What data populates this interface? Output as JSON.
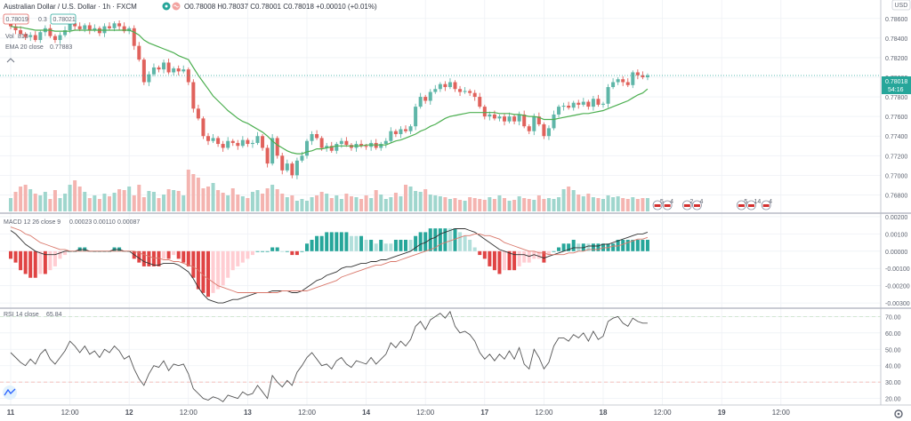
{
  "header": {
    "symbol": "Australian Dollar / U.S. Dollar · 1h · FXCM",
    "ohlc": "O0.78008 H0.78037 C0.78001 C0.78018 +0.00010 (+0.01%)",
    "sell_price": "0.78019",
    "spread": "0.3",
    "buy_price": "0.78021",
    "volume_label": "Vol",
    "volume_value": "813",
    "ema_label": "EMA 20 close",
    "ema_value": "0.77883",
    "currency": "USD"
  },
  "price_tag": {
    "value": "0.78018",
    "countdown": "54:16"
  },
  "macd_legend": {
    "label": "MACD 12 26 close 9",
    "v1": "0.00023",
    "v2": "0.00110",
    "v3": "0.00087"
  },
  "rsi_legend": {
    "label": "RSI 14 close",
    "value": "65.84"
  },
  "colors": {
    "up": "#5fb6a8",
    "down": "#e0625c",
    "ema": "#4caf50",
    "macd": "#333333",
    "signal": "#d9776a",
    "grid": "#eef1f5"
  },
  "chart_data": [
    {
      "type": "candlestick",
      "title": "Australian Dollar / U.S. Dollar · 1h · FXCM",
      "y_ticks": [
        "0.78600",
        "0.78400",
        "0.78200",
        "0.78000",
        "0.77800",
        "0.77600",
        "0.77400",
        "0.77200",
        "0.77000",
        "0.76800"
      ],
      "y_tick_values": [
        0.786,
        0.784,
        0.782,
        0.78,
        0.778,
        0.776,
        0.774,
        0.772,
        0.77,
        0.768
      ],
      "ylim": [
        0.7665,
        0.7877
      ],
      "x_tick_labels": [
        "11",
        "12:00",
        "12",
        "12:00",
        "13",
        "12:00",
        "14",
        "12:00",
        "17",
        "12:00",
        "18",
        "12:00",
        "19",
        "12:00"
      ],
      "x_tick_index": [
        0,
        12,
        24,
        36,
        48,
        60,
        72,
        84,
        96,
        108,
        120,
        132,
        144,
        156
      ],
      "close": [
        0.7852,
        0.7848,
        0.7844,
        0.7841,
        0.7843,
        0.7838,
        0.7846,
        0.785,
        0.7842,
        0.7838,
        0.7843,
        0.7848,
        0.7855,
        0.7852,
        0.7849,
        0.7853,
        0.7848,
        0.785,
        0.7845,
        0.7852,
        0.785,
        0.7855,
        0.7852,
        0.7847,
        0.785,
        0.7832,
        0.7818,
        0.7795,
        0.7803,
        0.781,
        0.7808,
        0.7815,
        0.7805,
        0.7809,
        0.7806,
        0.7808,
        0.7795,
        0.7768,
        0.7758,
        0.774,
        0.7735,
        0.7738,
        0.7732,
        0.7728,
        0.7735,
        0.7733,
        0.773,
        0.7736,
        0.7732,
        0.7733,
        0.774,
        0.7728,
        0.7712,
        0.7738,
        0.772,
        0.7705,
        0.7712,
        0.77,
        0.7715,
        0.772,
        0.7735,
        0.7742,
        0.7738,
        0.7728,
        0.773,
        0.7725,
        0.7732,
        0.7735,
        0.7731,
        0.7728,
        0.7732,
        0.773,
        0.7729,
        0.7733,
        0.7728,
        0.7732,
        0.7735,
        0.7745,
        0.7742,
        0.7747,
        0.7745,
        0.775,
        0.777,
        0.778,
        0.7776,
        0.7785,
        0.7788,
        0.7793,
        0.779,
        0.7795,
        0.7788,
        0.7785,
        0.7786,
        0.7784,
        0.778,
        0.777,
        0.776,
        0.7762,
        0.7758,
        0.776,
        0.7755,
        0.776,
        0.7755,
        0.7762,
        0.775,
        0.7745,
        0.776,
        0.7752,
        0.774,
        0.7748,
        0.7762,
        0.777,
        0.7771,
        0.7769,
        0.7774,
        0.7772,
        0.7775,
        0.777,
        0.7778,
        0.7772,
        0.7773,
        0.779,
        0.7795,
        0.7798,
        0.7795,
        0.7792,
        0.7805,
        0.7802,
        0.78,
        0.7802
      ],
      "volume": [
        15,
        22,
        28,
        30,
        25,
        20,
        18,
        22,
        14,
        24,
        15,
        20,
        30,
        35,
        28,
        22,
        15,
        18,
        14,
        20,
        17,
        21,
        25,
        24,
        28,
        18,
        30,
        16,
        23,
        22,
        15,
        19,
        25,
        24,
        23,
        18,
        47,
        42,
        38,
        26,
        28,
        32,
        24,
        21,
        18,
        26,
        19,
        17,
        15,
        22,
        24,
        20,
        26,
        30,
        25,
        20,
        16,
        18,
        12,
        14,
        12,
        16,
        18,
        22,
        20,
        15,
        18,
        14,
        20,
        17,
        16,
        14,
        18,
        15,
        24,
        19,
        14,
        16,
        21,
        17,
        30,
        28,
        23,
        22,
        25,
        19,
        18,
        17,
        16,
        14,
        15,
        13,
        12,
        16,
        15,
        14,
        13,
        16,
        14,
        18,
        15,
        12,
        13,
        17,
        15,
        14,
        13,
        18,
        14,
        15,
        14,
        16,
        25,
        28,
        24,
        19,
        17,
        20,
        16,
        15,
        14,
        18,
        16,
        17,
        15,
        14,
        16,
        14,
        15,
        15
      ],
      "ema": [
        0.7852,
        0.7851,
        0.7851,
        0.785,
        0.7849,
        0.7848,
        0.7848,
        0.7848,
        0.7848,
        0.7847,
        0.7847,
        0.7847,
        0.7847,
        0.7848,
        0.7848,
        0.7848,
        0.7848,
        0.7848,
        0.7848,
        0.7848,
        0.7848,
        0.7848,
        0.7848,
        0.7848,
        0.7848,
        0.7846,
        0.7843,
        0.7838,
        0.7835,
        0.7833,
        0.7831,
        0.7829,
        0.7827,
        0.7825,
        0.7822,
        0.782,
        0.7818,
        0.781,
        0.7802,
        0.7795,
        0.7788,
        0.7781,
        0.7776,
        0.7771,
        0.7766,
        0.7762,
        0.7758,
        0.7755,
        0.7753,
        0.775,
        0.7747,
        0.7744,
        0.774,
        0.7735,
        0.7731,
        0.7728,
        0.7725,
        0.7723,
        0.7722,
        0.7722,
        0.7724,
        0.7725,
        0.7727,
        0.7727,
        0.7728,
        0.7729,
        0.773,
        0.773,
        0.773,
        0.773,
        0.773,
        0.773,
        0.7731,
        0.7731,
        0.7731,
        0.7731,
        0.7731,
        0.7733,
        0.7735,
        0.7736,
        0.7738,
        0.774,
        0.7742,
        0.7745,
        0.7747,
        0.775,
        0.7752,
        0.7755,
        0.7758,
        0.776,
        0.7761,
        0.7762,
        0.7763,
        0.7764,
        0.7764,
        0.7764,
        0.7764,
        0.7764,
        0.7764,
        0.7763,
        0.7763,
        0.7763,
        0.7762,
        0.7762,
        0.7761,
        0.776,
        0.776,
        0.7759,
        0.7757,
        0.7757,
        0.7757,
        0.7758,
        0.7759,
        0.776,
        0.7761,
        0.7762,
        0.7763,
        0.7763,
        0.7764,
        0.7765,
        0.7766,
        0.7768,
        0.777,
        0.7772,
        0.7774,
        0.7776,
        0.7779,
        0.7782,
        0.7784,
        0.7788
      ]
    },
    {
      "type": "histogram+line",
      "title": "MACD 12 26 close 9",
      "y_ticks": [
        "0.00200",
        "0.00100",
        "0.00000",
        "-0.00100",
        "-0.00200",
        "-0.00300"
      ],
      "y_tick_values": [
        0.002,
        0.001,
        0.0,
        -0.001,
        -0.002,
        -0.003
      ],
      "ylim": [
        -0.0032,
        0.0021
      ],
      "macd": [
        0.0012,
        0.001,
        0.0007,
        0.0004,
        0.0002,
        0.0,
        -0.0001,
        -0.0002,
        -0.0002,
        -0.0002,
        -0.0001,
        0.0,
        0.0,
        0.0,
        0.0001,
        0.0001,
        0.0,
        0.0,
        0.0,
        0.0,
        0.0,
        0.0001,
        0.0001,
        0.0,
        0.0,
        -0.0002,
        -0.0004,
        -0.0006,
        -0.0007,
        -0.0008,
        -0.0008,
        -0.0007,
        -0.0007,
        -0.0007,
        -0.0008,
        -0.001,
        -0.0012,
        -0.0016,
        -0.0021,
        -0.0025,
        -0.0028,
        -0.0029,
        -0.003,
        -0.003,
        -0.0029,
        -0.0028,
        -0.0028,
        -0.0027,
        -0.0026,
        -0.0025,
        -0.0024,
        -0.0024,
        -0.0024,
        -0.0023,
        -0.0023,
        -0.0023,
        -0.0023,
        -0.0024,
        -0.0024,
        -0.0023,
        -0.0021,
        -0.0019,
        -0.0017,
        -0.0016,
        -0.0014,
        -0.0013,
        -0.0012,
        -0.001,
        -0.0009,
        -0.0009,
        -0.0008,
        -0.0007,
        -0.0007,
        -0.0006,
        -0.0006,
        -0.0005,
        -0.0005,
        -0.0004,
        -0.0003,
        -0.0002,
        -0.0001,
        0.0,
        0.0002,
        0.0004,
        0.0005,
        0.0007,
        0.0008,
        0.001,
        0.0011,
        0.0012,
        0.0013,
        0.0013,
        0.0013,
        0.0012,
        0.0011,
        0.0009,
        0.0007,
        0.0005,
        0.0003,
        0.0001,
        0.0,
        -0.0001,
        -0.0002,
        -0.0002,
        -0.0002,
        -0.0003,
        -0.0002,
        -0.0003,
        -0.0004,
        -0.0003,
        -0.0002,
        -0.0001,
        0.0,
        0.0001,
        0.0002,
        0.0002,
        0.0002,
        0.0003,
        0.0003,
        0.0003,
        0.0004,
        0.0004,
        0.0005,
        0.0006,
        0.0007,
        0.0008,
        0.0009,
        0.001,
        0.001,
        0.0011
      ],
      "signal": [
        0.0014,
        0.0013,
        0.0012,
        0.001,
        0.0009,
        0.0007,
        0.0005,
        0.0004,
        0.0003,
        0.0002,
        0.0001,
        0.0001,
        0.0,
        0.0,
        0.0,
        0.0,
        0.0,
        0.0,
        0.0,
        0.0,
        0.0,
        0.0,
        0.0,
        0.0,
        0.0,
        0.0,
        -0.0001,
        -0.0002,
        -0.0003,
        -0.0004,
        -0.0004,
        -0.0005,
        -0.0005,
        -0.0006,
        -0.0006,
        -0.0007,
        -0.0008,
        -0.0009,
        -0.0011,
        -0.0014,
        -0.0016,
        -0.0018,
        -0.002,
        -0.0021,
        -0.0022,
        -0.0023,
        -0.0024,
        -0.0024,
        -0.0024,
        -0.0024,
        -0.0024,
        -0.0024,
        -0.0024,
        -0.0024,
        -0.0024,
        -0.0023,
        -0.0023,
        -0.0023,
        -0.0023,
        -0.0023,
        -0.0023,
        -0.0022,
        -0.0021,
        -0.002,
        -0.0019,
        -0.0018,
        -0.0017,
        -0.0015,
        -0.0014,
        -0.0013,
        -0.0012,
        -0.0011,
        -0.001,
        -0.0009,
        -0.0008,
        -0.0008,
        -0.0007,
        -0.0006,
        -0.0006,
        -0.0005,
        -0.0004,
        -0.0003,
        -0.0002,
        -0.0001,
        0.0,
        0.0001,
        0.0002,
        0.0004,
        0.0005,
        0.0006,
        0.0007,
        0.0008,
        0.0009,
        0.0009,
        0.001,
        0.001,
        0.0009,
        0.0009,
        0.0008,
        0.0007,
        0.0005,
        0.0004,
        0.0003,
        0.0002,
        0.0001,
        0.0,
        0.0,
        -0.0001,
        -0.0001,
        -0.0002,
        -0.0002,
        -0.0002,
        -0.0002,
        -0.0001,
        -0.0001,
        0.0,
        0.0,
        0.0001,
        0.0001,
        0.0001,
        0.0002,
        0.0002,
        0.0003,
        0.0003,
        0.0004,
        0.0005,
        0.0006,
        0.0007,
        0.0007,
        0.0008
      ]
    },
    {
      "type": "line",
      "title": "RSI 14 close",
      "y_ticks": [
        "70.00",
        "60.00",
        "50.00",
        "40.00",
        "30.00",
        "20.00"
      ],
      "y_tick_values": [
        70,
        60,
        50,
        40,
        30,
        20
      ],
      "ylim": [
        16,
        74
      ],
      "bands": [
        70,
        30
      ],
      "values": [
        48,
        45,
        42,
        40,
        44,
        41,
        47,
        50,
        44,
        41,
        45,
        49,
        55,
        52,
        48,
        52,
        47,
        49,
        45,
        50,
        48,
        52,
        49,
        44,
        46,
        38,
        32,
        28,
        35,
        40,
        39,
        43,
        37,
        41,
        40,
        41,
        35,
        26,
        23,
        20,
        19,
        21,
        20,
        18,
        22,
        21,
        20,
        24,
        22,
        23,
        28,
        24,
        20,
        34,
        30,
        27,
        31,
        28,
        36,
        40,
        45,
        48,
        44,
        40,
        41,
        38,
        43,
        45,
        41,
        39,
        43,
        42,
        41,
        45,
        41,
        44,
        47,
        54,
        51,
        55,
        52,
        56,
        64,
        67,
        62,
        68,
        70,
        72,
        69,
        73,
        64,
        60,
        61,
        59,
        55,
        48,
        44,
        47,
        43,
        47,
        44,
        49,
        44,
        51,
        41,
        38,
        50,
        45,
        38,
        42,
        52,
        57,
        57,
        55,
        59,
        57,
        60,
        55,
        61,
        56,
        58,
        67,
        69,
        70,
        66,
        64,
        69,
        67,
        66,
        66
      ]
    }
  ],
  "event_markers": [
    {
      "index": 131,
      "label": "5"
    },
    {
      "index": 133,
      "label": "4"
    },
    {
      "index": 137,
      "label": "2"
    },
    {
      "index": 139,
      "label": "4"
    },
    {
      "index": 148,
      "label": "5"
    },
    {
      "index": 150,
      "label": "14"
    },
    {
      "index": 153,
      "label": "4"
    }
  ]
}
